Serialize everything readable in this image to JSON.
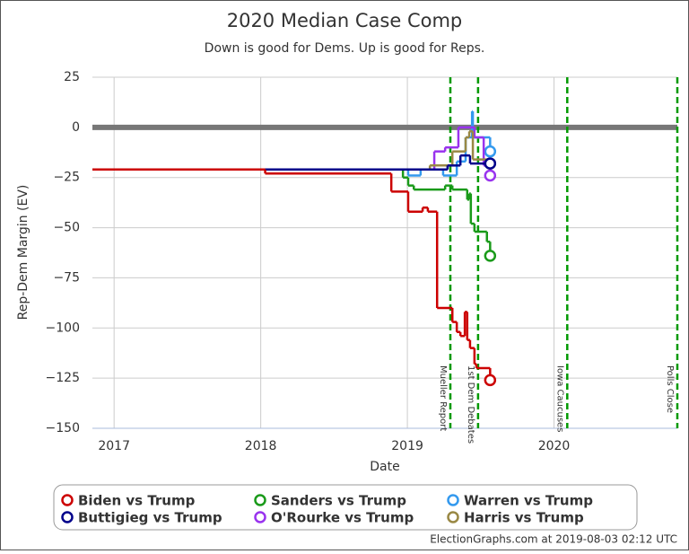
{
  "chart_data": {
    "type": "step-line",
    "title": "2020 Median Case Comp",
    "subtitle": "Down is good for Dems. Up is good for Reps.",
    "y_label": "Rep-Dem Margin (EV)",
    "x_label": "Date",
    "footer": "ElectionGraphs.com at 2019-08-03 02:12 UTC",
    "xlim": [
      "2016-11-08",
      "2020-11-03"
    ],
    "xticks": [
      {
        "value": "2017-01-01",
        "label": "2017"
      },
      {
        "value": "2018-01-01",
        "label": "2018"
      },
      {
        "value": "2019-01-01",
        "label": "2019"
      },
      {
        "value": "2020-01-01",
        "label": "2020"
      }
    ],
    "ylim": [
      -150,
      25
    ],
    "yticks": [
      {
        "value": -150,
        "label": "−150"
      },
      {
        "value": -125,
        "label": "−125"
      },
      {
        "value": -100,
        "label": "−100"
      },
      {
        "value": -75,
        "label": "−75"
      },
      {
        "value": -50,
        "label": "−50"
      },
      {
        "value": -25,
        "label": "−25"
      },
      0,
      25
    ],
    "grid": true,
    "reference_line": 0,
    "events": [
      {
        "date": "2019-04-18",
        "label": "Mueller Report"
      },
      {
        "date": "2019-06-26",
        "label": "1st Dem Debates"
      },
      {
        "date": "2020-02-03",
        "label": "Iowa Caucuses"
      },
      {
        "date": "2020-11-03",
        "label": "Polls Close"
      }
    ],
    "event_color": "#009900",
    "series": [
      {
        "name": "Sanders vs Trump",
        "color": "#1a9a1a",
        "x": [
          "2016-11-08",
          "2018-12-21",
          "2019-01-03",
          "2019-01-17",
          "2019-04-05",
          "2019-04-23",
          "2019-05-30",
          "2019-06-04",
          "2019-06-08",
          "2019-06-17",
          "2019-07-18",
          "2019-07-26"
        ],
        "values": [
          -21,
          -25,
          -29,
          -31,
          -29,
          -31,
          -36,
          -33,
          -48,
          -52,
          -57,
          -64
        ]
      },
      {
        "name": "Warren vs Trump",
        "color": "#3399ee",
        "x": [
          "2016-11-08",
          "2019-01-03",
          "2019-02-03",
          "2019-03-31",
          "2019-05-04",
          "2019-05-26",
          "2019-06-11",
          "2019-06-13",
          "2019-07-26"
        ],
        "values": [
          -21,
          -24,
          -21,
          -24,
          -17,
          -5,
          8,
          -5,
          -12
        ]
      },
      {
        "name": "O'Rourke vs Trump",
        "color": "#9933ee",
        "x": [
          "2016-11-08",
          "2019-03-09",
          "2019-04-05",
          "2019-05-08",
          "2019-06-17",
          "2019-07-10",
          "2019-07-26"
        ],
        "values": [
          -21,
          -12,
          -10,
          0,
          -5,
          -19,
          -24
        ]
      },
      {
        "name": "Harris vs Trump",
        "color": "#998844",
        "x": [
          "2016-11-08",
          "2019-02-26",
          "2019-04-23",
          "2019-05-26",
          "2019-06-04",
          "2019-06-13",
          "2019-07-26"
        ],
        "values": [
          -21,
          -19,
          -12,
          -5,
          -2,
          -16,
          -18
        ]
      },
      {
        "name": "Buttigieg vs Trump",
        "color": "#00008b",
        "x": [
          "2016-11-08",
          "2019-04-11",
          "2019-05-13",
          "2019-06-06",
          "2019-07-26"
        ],
        "values": [
          -21,
          -19,
          -14,
          -18,
          -18
        ]
      },
      {
        "name": "Biden vs Trump",
        "color": "#cc0000",
        "x": [
          "2016-11-08",
          "2018-01-12",
          "2018-11-22",
          "2019-01-03",
          "2019-02-08",
          "2019-02-21",
          "2019-03-16",
          "2019-04-23",
          "2019-05-04",
          "2019-05-13",
          "2019-05-24",
          "2019-05-30",
          "2019-06-06",
          "2019-06-17",
          "2019-06-22",
          "2019-07-26"
        ],
        "values": [
          -21,
          -23,
          -32,
          -42,
          -40,
          -42,
          -90,
          -97,
          -102,
          -104,
          -92,
          -106,
          -110,
          -118,
          -120,
          -126
        ]
      }
    ],
    "legend_order": [
      5,
      0,
      1,
      4,
      2,
      3
    ]
  }
}
